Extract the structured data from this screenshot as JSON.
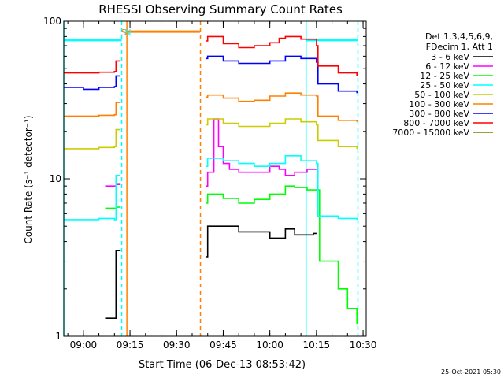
{
  "chart_data": {
    "type": "line",
    "title": "RHESSI Observing Summary Count Rates",
    "xlabel": "Start Time (06-Dec-13 08:53:42)",
    "ylabel": "Count Rate (s⁻¹ detector⁻¹)",
    "y_scale": "log",
    "ylim": [
      1,
      100
    ],
    "xlim": [
      "08:53:42",
      "10:31:00"
    ],
    "x_ticks": [
      "09:00",
      "09:15",
      "09:30",
      "09:45",
      "10:00",
      "10:15",
      "10:30"
    ],
    "y_ticks": [
      "1",
      "10",
      "100"
    ],
    "grid": false,
    "legend_position": "right",
    "legend_header": [
      "Det 1,3,4,5,6,9,",
      "FDecim 1, Att 1"
    ],
    "footer": "25-Oct-2021 05:30",
    "annotations": [
      {
        "text": "S",
        "x": "09:13:00",
        "color": "#ff8000"
      },
      {
        "text": "N",
        "x": "09:14:20",
        "color": "#00ffff"
      }
    ],
    "vertical_lines": [
      {
        "x": "09:12:20",
        "color": "#00ffff",
        "style": "dashed"
      },
      {
        "x": "09:14:00",
        "color": "#ff8000",
        "style": "solid"
      },
      {
        "x": "09:37:40",
        "color": "#ff8000",
        "style": "dashed"
      },
      {
        "x": "10:11:40",
        "color": "#00ffff",
        "style": "solid"
      },
      {
        "x": "10:28:20",
        "color": "#00ffff",
        "style": "dashed"
      },
      {
        "x": "08:53:42",
        "color": "#00ffff",
        "style": "solid"
      }
    ],
    "horizontal_bars": [
      {
        "x0": "08:53:42",
        "x1": "09:12:20",
        "y": 76,
        "color": "#00ffff"
      },
      {
        "x0": "09:14:20",
        "x1": "09:37:30",
        "y": 86,
        "color": "#ff8000"
      },
      {
        "x0": "10:11:40",
        "x1": "10:28:20",
        "y": 76,
        "color": "#00ffff"
      }
    ],
    "data_gaps": [
      [
        "09:12:30",
        "09:39:00"
      ]
    ],
    "series": [
      {
        "name": "3 - 6 keV",
        "color": "#000000",
        "x": [
          "09:07:00",
          "09:10:30",
          "09:12:00",
          "09:39:30",
          "09:40:00",
          "09:50:00",
          "10:00:00",
          "10:05:00",
          "10:08:00",
          "10:14:00",
          "10:15:00"
        ],
        "y": [
          1.3,
          3.5,
          3.5,
          3.2,
          5.0,
          4.6,
          4.2,
          4.8,
          4.4,
          4.5,
          4.5
        ]
      },
      {
        "name": "6 - 12 keV",
        "color": "#ff00ff",
        "x": [
          "09:07:00",
          "09:10:30",
          "09:12:00",
          "09:39:30",
          "09:40:00",
          "09:42:00",
          "09:43:30",
          "09:45:00",
          "09:47:00",
          "09:50:00",
          "09:55:00",
          "10:00:00",
          "10:03:00",
          "10:05:00",
          "10:08:00",
          "10:12:00",
          "10:15:00"
        ],
        "y": [
          9.0,
          9.2,
          9.2,
          9.0,
          11.0,
          24.0,
          16.0,
          12.5,
          11.5,
          11.0,
          11.0,
          12.0,
          11.5,
          10.5,
          11.0,
          11.5,
          11.5
        ]
      },
      {
        "name": "12 - 25 keV",
        "color": "#00ff00",
        "x": [
          "09:07:00",
          "09:10:30",
          "09:12:00",
          "09:39:30",
          "09:40:00",
          "09:45:00",
          "09:50:00",
          "09:55:00",
          "10:00:00",
          "10:05:00",
          "10:08:00",
          "10:12:00",
          "10:15:00",
          "10:16:00",
          "10:22:00",
          "10:25:00",
          "10:28:00"
        ],
        "y": [
          6.5,
          6.6,
          6.6,
          7.0,
          8.0,
          7.5,
          7.0,
          7.4,
          8.0,
          9.0,
          8.8,
          8.5,
          8.5,
          3.0,
          2.0,
          1.5,
          1.2
        ]
      },
      {
        "name": "25 - 50 keV",
        "color": "#00ffff",
        "x": [
          "08:53:42",
          "09:05:00",
          "09:10:00",
          "09:10:30",
          "09:12:00",
          "09:39:30",
          "09:40:00",
          "09:45:00",
          "09:50:00",
          "09:55:00",
          "10:00:00",
          "10:05:00",
          "10:10:00",
          "10:15:00",
          "10:15:30",
          "10:22:00",
          "10:28:00"
        ],
        "y": [
          5.5,
          5.6,
          5.5,
          10.5,
          10.5,
          12.0,
          13.5,
          13.0,
          12.5,
          12.0,
          12.5,
          14.0,
          13.0,
          12.5,
          5.8,
          5.6,
          5.5
        ]
      },
      {
        "name": "50 - 100 keV",
        "color": "#cccc00",
        "x": [
          "08:53:42",
          "09:00:00",
          "09:05:00",
          "09:10:00",
          "09:10:30",
          "09:12:00",
          "09:39:30",
          "09:40:00",
          "09:45:00",
          "09:50:00",
          "09:55:00",
          "10:00:00",
          "10:05:00",
          "10:10:00",
          "10:15:00",
          "10:15:30",
          "10:22:00",
          "10:28:00"
        ],
        "y": [
          15.5,
          15.5,
          15.8,
          16.0,
          20.5,
          20.5,
          22.0,
          24.0,
          22.5,
          21.5,
          21.5,
          22.5,
          24.0,
          23.0,
          22.0,
          17.5,
          16.0,
          15.5
        ]
      },
      {
        "name": "100 - 300 keV",
        "color": "#ff8000",
        "x": [
          "08:53:42",
          "09:00:00",
          "09:05:00",
          "09:10:00",
          "09:10:30",
          "09:12:00",
          "09:39:30",
          "09:40:00",
          "09:45:00",
          "09:50:00",
          "09:55:00",
          "10:00:00",
          "10:05:00",
          "10:10:00",
          "10:15:00",
          "10:15:30",
          "10:22:00",
          "10:28:00"
        ],
        "y": [
          25.0,
          25.0,
          25.3,
          25.5,
          30.5,
          30.5,
          33.0,
          34.0,
          32.5,
          31.0,
          31.5,
          33.5,
          35.0,
          34.0,
          33.5,
          25.0,
          23.5,
          23.0
        ]
      },
      {
        "name": "300 - 800 keV",
        "color": "#0000ff",
        "x": [
          "08:53:42",
          "09:00:00",
          "09:05:00",
          "09:10:00",
          "09:10:30",
          "09:12:00",
          "09:39:30",
          "09:40:00",
          "09:45:00",
          "09:50:00",
          "09:55:00",
          "10:00:00",
          "10:05:00",
          "10:10:00",
          "10:15:00",
          "10:15:30",
          "10:22:00",
          "10:28:00"
        ],
        "y": [
          38.0,
          37.0,
          38.0,
          38.5,
          45.0,
          45.0,
          58.0,
          60.0,
          56.0,
          54.0,
          54.0,
          56.0,
          60.0,
          58.0,
          55.0,
          40.0,
          36.0,
          35.0
        ]
      },
      {
        "name": "800 - 7000 keV",
        "color": "#ff0000",
        "x": [
          "08:53:42",
          "09:00:00",
          "09:05:00",
          "09:10:00",
          "09:10:30",
          "09:12:00",
          "09:39:30",
          "09:40:00",
          "09:45:00",
          "09:50:00",
          "09:55:00",
          "10:00:00",
          "10:03:00",
          "10:05:00",
          "10:10:00",
          "10:15:00",
          "10:15:30",
          "10:22:00",
          "10:28:00"
        ],
        "y": [
          47.0,
          47.0,
          47.5,
          48.0,
          56.0,
          56.0,
          75.0,
          80.0,
          72.0,
          68.0,
          70.0,
          73.0,
          78.0,
          80.0,
          77.0,
          70.0,
          52.0,
          47.0,
          45.0
        ]
      },
      {
        "name": "7000 - 15000 keV",
        "color": "#808000",
        "x": [],
        "y": []
      }
    ]
  }
}
